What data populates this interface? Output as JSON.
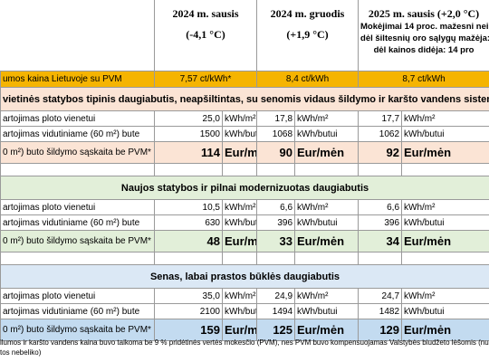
{
  "header": {
    "columns": [
      {
        "title": "2024 m. sausis",
        "subtitle": "(-4,1 °C)"
      },
      {
        "title": "2024 m. gruodis",
        "subtitle": "(+1,9 °C)"
      },
      {
        "title": "2025 m. sausis  (+2,0 °C)",
        "notes": [
          "Mokėjimai 14 proc. mažesni nei pr",
          "dėl šiltesnių oro sąlygų mažėja:",
          "dėl kainos didėja:  14 pro"
        ]
      }
    ]
  },
  "price_row": {
    "label": "umos kaina Lietuvoje su PVM",
    "values": [
      "7,57 ct/kWh*",
      "8,4 ct/kWh",
      "8,7 ct/kWh"
    ]
  },
  "sections": [
    {
      "title": "vietinės statybos tipinis daugiabutis, neapšiltintas, su senomis vidaus šildymo ir karšto vandens sistemom",
      "rows": [
        {
          "label": "artojimas ploto vienetui",
          "values": [
            "25,0",
            "17,8",
            "17,7"
          ],
          "unit": "kWh/m²"
        },
        {
          "label": "artojimas vidutiniame (60 m²) bute",
          "values": [
            "1500",
            "1068",
            "1062"
          ],
          "unit": "kWh/butui"
        },
        {
          "label": "0 m²) buto šildymo sąskaita be PVM*",
          "values": [
            "114",
            "90",
            "92"
          ],
          "unit": "Eur/mėn"
        }
      ]
    },
    {
      "title": "Naujos statybos ir pilnai modernizuotas daugiabutis",
      "rows": [
        {
          "label": "artojimas ploto vienetui",
          "values": [
            "10,5",
            "6,6",
            "6,6"
          ],
          "unit": "kWh/m²"
        },
        {
          "label": "artojimas vidutiniame (60 m²) bute",
          "values": [
            "630",
            "396",
            "396"
          ],
          "unit": "kWh/butui"
        },
        {
          "label": "0 m²) buto šildymo sąskaita be PVM*",
          "values": [
            "48",
            "33",
            "34"
          ],
          "unit": "Eur/mėn"
        }
      ]
    },
    {
      "title": "Senas, labai prastos būklės daugiabutis",
      "rows": [
        {
          "label": "artojimas ploto vienetui",
          "values": [
            "35,0",
            "24,9",
            "24,7"
          ],
          "unit": "kWh/m²"
        },
        {
          "label": "artojimas vidutiniame (60 m²) bute",
          "values": [
            "2100",
            "1494",
            "1482"
          ],
          "unit": "kWh/butui"
        },
        {
          "label": "0 m²) buto šildymo sąskaita be PVM*",
          "values": [
            "159",
            "125",
            "129"
          ],
          "unit": "Eur/mėn"
        }
      ]
    }
  ],
  "footnote": [
    "ilumos ir karšto vandens kaina buvo taikoma be 9 % pridėtinės vertės mokesčio (PVM), nes PVM buvo kompensuojamas Valstybės biudžeto lėšomis (nuo 2024",
    "tos nebeliko)"
  ]
}
